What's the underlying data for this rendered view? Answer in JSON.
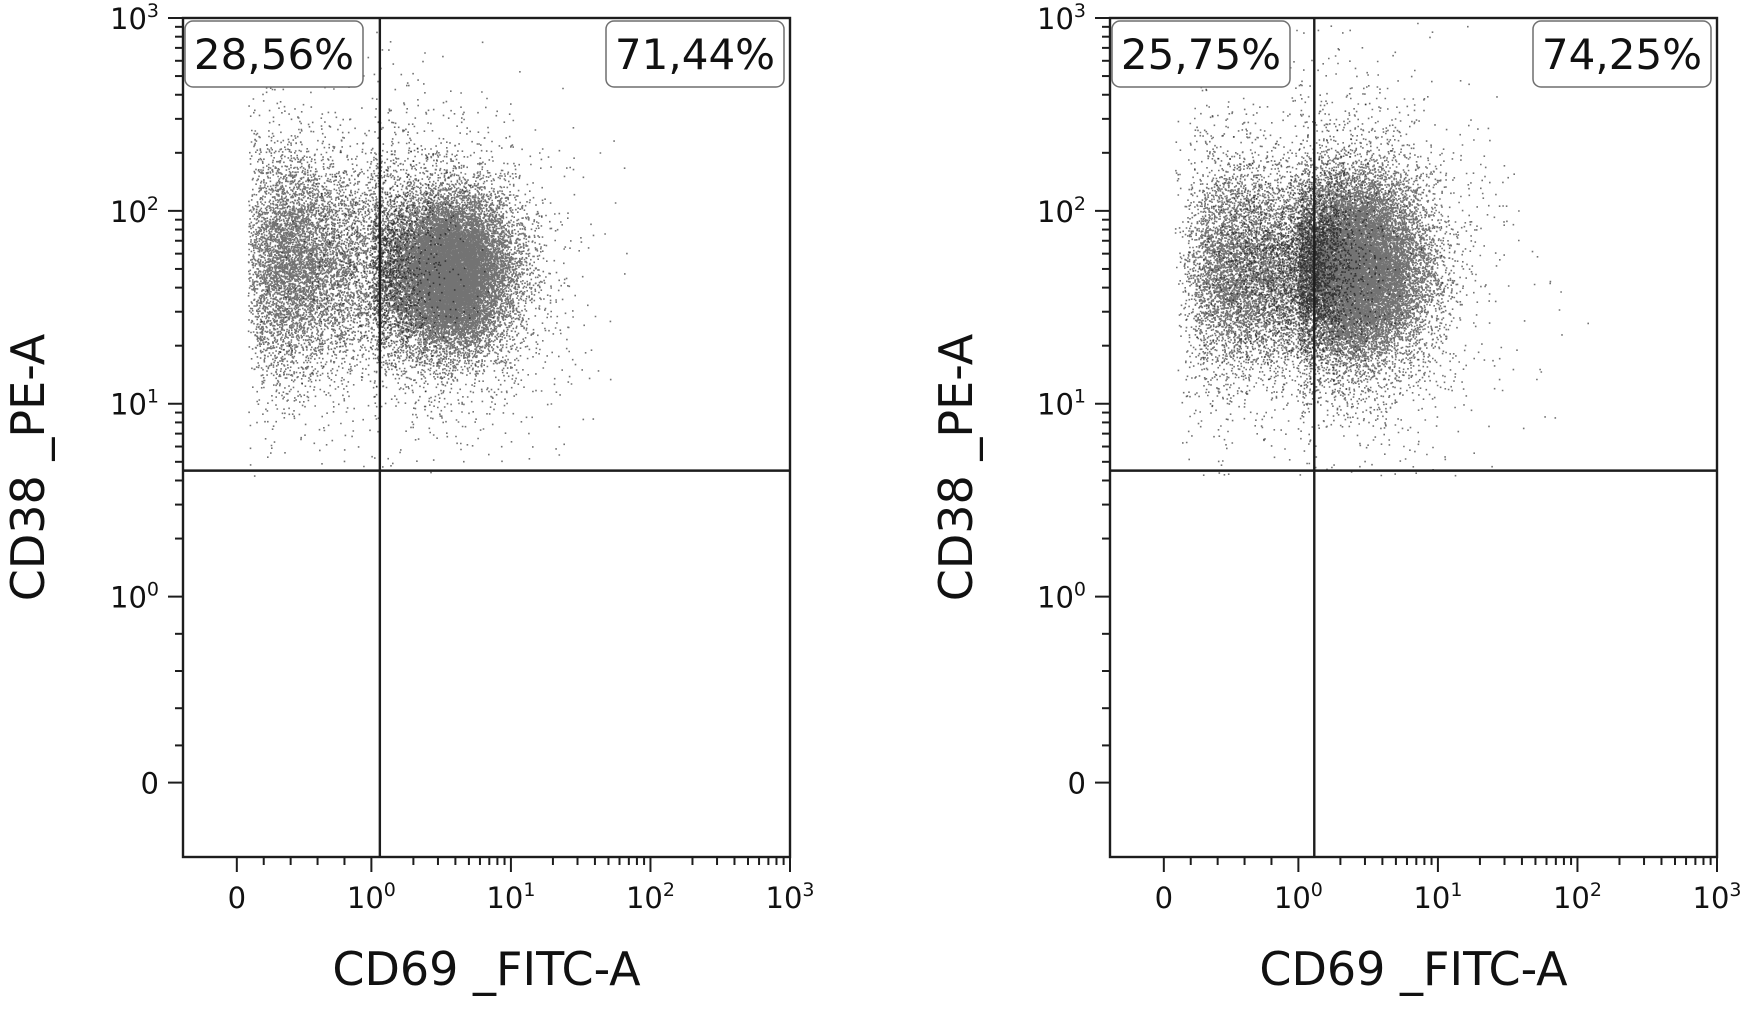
{
  "chart_data": [
    {
      "type": "scatter",
      "title": "",
      "xlabel": "CD69 _FITC-A",
      "ylabel": "CD38 _PE-A",
      "x_scale": "biexponential",
      "y_scale": "biexponential",
      "xlim": [
        -0.4,
        1000
      ],
      "ylim": [
        -0.4,
        1000
      ],
      "x_ticks": [
        {
          "base": "0",
          "exp": ""
        },
        {
          "base": "10",
          "exp": "0"
        },
        {
          "base": "10",
          "exp": "1"
        },
        {
          "base": "10",
          "exp": "2"
        },
        {
          "base": "10",
          "exp": "3"
        }
      ],
      "y_ticks": [
        {
          "base": "0",
          "exp": ""
        },
        {
          "base": "10",
          "exp": "0"
        },
        {
          "base": "10",
          "exp": "1"
        },
        {
          "base": "10",
          "exp": "2"
        },
        {
          "base": "10",
          "exp": "3"
        }
      ],
      "gates": {
        "x": 1.15,
        "y": 4.5
      },
      "quadrants": [
        {
          "position": "upper-left",
          "label": "28,56%",
          "value": 28.56
        },
        {
          "position": "upper-right",
          "label": "71,44%",
          "value": 71.44
        }
      ],
      "populations": [
        {
          "center": [
            0.55,
            55
          ],
          "spread_log": [
            0.28,
            0.28
          ],
          "weight": 0.3
        },
        {
          "center": [
            3.6,
            48
          ],
          "spread_log": [
            0.22,
            0.2
          ],
          "weight": 0.7
        }
      ],
      "grid": false,
      "legend": "none"
    },
    {
      "type": "scatter",
      "title": "",
      "xlabel": "CD69 _FITC-A",
      "ylabel": "CD38 _PE-A",
      "x_scale": "biexponential",
      "y_scale": "biexponential",
      "xlim": [
        -0.4,
        1000
      ],
      "ylim": [
        -0.4,
        1000
      ],
      "x_ticks": [
        {
          "base": "0",
          "exp": ""
        },
        {
          "base": "10",
          "exp": "0"
        },
        {
          "base": "10",
          "exp": "1"
        },
        {
          "base": "10",
          "exp": "2"
        },
        {
          "base": "10",
          "exp": "3"
        }
      ],
      "y_ticks": [
        {
          "base": "0",
          "exp": ""
        },
        {
          "base": "10",
          "exp": "0"
        },
        {
          "base": "10",
          "exp": "1"
        },
        {
          "base": "10",
          "exp": "2"
        },
        {
          "base": "10",
          "exp": "3"
        }
      ],
      "gates": {
        "x": 1.3,
        "y": 4.5
      },
      "quadrants": [
        {
          "position": "upper-left",
          "label": "25,75%",
          "value": 25.75
        },
        {
          "position": "upper-right",
          "label": "74,25%",
          "value": 74.25
        }
      ],
      "populations": [
        {
          "center": [
            0.75,
            50
          ],
          "spread_log": [
            0.24,
            0.26
          ],
          "weight": 0.3
        },
        {
          "center": [
            2.6,
            50
          ],
          "spread_log": [
            0.25,
            0.24
          ],
          "weight": 0.7
        }
      ],
      "grid": false,
      "legend": "none"
    }
  ]
}
